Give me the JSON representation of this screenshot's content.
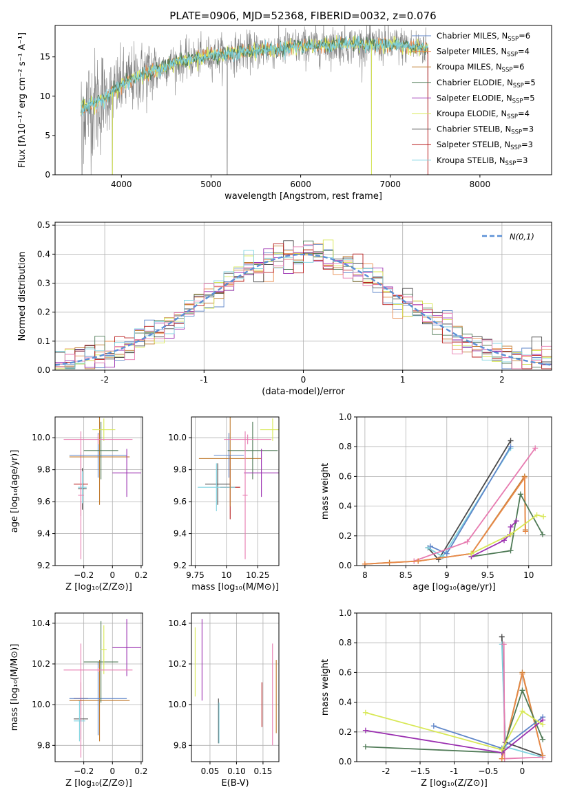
{
  "figure": {
    "title": "PLATE=0906, MJD=52368, FIBERID=0032, z=0.076"
  },
  "colors": {
    "chabrier_miles": "#5f86c9",
    "salpeter_miles": "#e88a4a",
    "kroupa_miles": "#c07a2e",
    "chabrier_elodie": "#4f7a56",
    "salpeter_elodie": "#9a2fb0",
    "kroupa_elodie": "#d8e855",
    "chabrier_stelib": "#4a4a4a",
    "salpeter_stelib": "#b81c1c",
    "kroupa_stelib": "#7fd3e0",
    "pink": "#e77bb0",
    "gauss": "#5a8fd6",
    "data_grey": "#808080"
  },
  "chart_data": [
    {
      "id": "spectrum",
      "type": "line",
      "xlabel": "wavelength [Angstrom, rest frame]",
      "ylabel": "Flux [fλ10⁻¹⁷ erg cm⁻² s⁻¹ A⁻¹]",
      "xlim": [
        3260,
        8800
      ],
      "ylim": [
        0,
        19
      ],
      "xticks": [
        4000,
        5000,
        6000,
        7000,
        8000
      ],
      "yticks": [
        0,
        5,
        10,
        15
      ],
      "legend_position": "top-right",
      "legend": [
        {
          "label": "Chabrier MILES, N",
          "sub": "SSP",
          "val": "=6",
          "color": "chabrier_miles"
        },
        {
          "label": "Salpeter MILES, N",
          "sub": "SSP",
          "val": "=4",
          "color": "salpeter_miles"
        },
        {
          "label": "Kroupa MILES, N",
          "sub": "SSP",
          "val": "=6",
          "color": "kroupa_miles"
        },
        {
          "label": "Chabrier ELODIE, N",
          "sub": "SSP",
          "val": "=5",
          "color": "chabrier_elodie"
        },
        {
          "label": "Salpeter ELODIE, N",
          "sub": "SSP",
          "val": "=5",
          "color": "salpeter_elodie"
        },
        {
          "label": "Kroupa ELODIE, N",
          "sub": "SSP",
          "val": "=4",
          "color": "kroupa_elodie"
        },
        {
          "label": "Chabrier STELIB, N",
          "sub": "SSP",
          "val": "=3",
          "color": "chabrier_stelib"
        },
        {
          "label": "Salpeter STELIB, N",
          "sub": "SSP",
          "val": "=3",
          "color": "salpeter_stelib"
        },
        {
          "label": "Kroupa STELIB, N",
          "sub": "SSP",
          "val": "=3",
          "color": "kroupa_stelib"
        }
      ],
      "continuum": [
        [
          3550,
          8.5
        ],
        [
          3700,
          9.0
        ],
        [
          3900,
          10.5
        ],
        [
          4000,
          11.5
        ],
        [
          4300,
          13.0
        ],
        [
          4600,
          14.3
        ],
        [
          5000,
          15.2
        ],
        [
          5500,
          15.8
        ],
        [
          6000,
          16.3
        ],
        [
          6500,
          16.6
        ],
        [
          7000,
          16.5
        ],
        [
          7400,
          16.2
        ]
      ],
      "drops": [
        3560,
        3900,
        5180,
        6790,
        7420
      ]
    },
    {
      "id": "residuals",
      "type": "histogram",
      "xlabel": "(data-model)/error",
      "ylabel": "Normed distribution",
      "xlim": [
        -2.5,
        2.5
      ],
      "ylim": [
        0,
        0.51
      ],
      "xticks": [
        -2,
        -1,
        0,
        1,
        2
      ],
      "yticks": [
        0.0,
        0.1,
        0.2,
        0.3,
        0.4,
        0.5
      ],
      "legend_position": "top-right",
      "legend_label": "N(0,1)",
      "bin_width": 0.1,
      "series_colors": [
        "chabrier_miles",
        "salpeter_miles",
        "kroupa_miles",
        "chabrier_elodie",
        "salpeter_elodie",
        "kroupa_elodie",
        "chabrier_stelib",
        "salpeter_stelib",
        "kroupa_stelib",
        "pink"
      ]
    },
    {
      "id": "age_vs_Z",
      "type": "errorbar",
      "xlabel": "Z [log₁₀(Z/Z⊙)]",
      "ylabel": "age  [log₁₀(age/yr)]",
      "xlim": [
        -0.4,
        0.21
      ],
      "ylim": [
        9.2,
        10.13
      ],
      "xticks": [
        -0.2,
        0.0,
        0.2
      ],
      "yticks": [
        9.2,
        9.4,
        9.6,
        9.8,
        10.0
      ],
      "points": [
        {
          "x": -0.21,
          "y": 9.68,
          "dx": 0.03,
          "dy": 0.13,
          "color": "chabrier_stelib"
        },
        {
          "x": -0.22,
          "y": 9.71,
          "dx": 0.05,
          "dy": 0.2,
          "color": "salpeter_stelib"
        },
        {
          "x": -0.21,
          "y": 9.69,
          "dx": 0.03,
          "dy": 0.1,
          "color": "kroupa_stelib"
        },
        {
          "x": -0.22,
          "y": 9.64,
          "dx": 0.02,
          "dy": 0.4,
          "color": "pink"
        },
        {
          "x": -0.09,
          "y": 9.88,
          "dx": 0.21,
          "dy": 0.3,
          "color": "kroupa_miles"
        },
        {
          "x": -0.1,
          "y": 9.89,
          "dx": 0.2,
          "dy": 0.14,
          "color": "chabrier_miles"
        },
        {
          "x": -0.08,
          "y": 9.92,
          "dx": 0.12,
          "dy": 0.18,
          "color": "chabrier_elodie"
        },
        {
          "x": -0.06,
          "y": 10.05,
          "dx": 0.08,
          "dy": 0.07,
          "color": "kroupa_elodie"
        },
        {
          "x": 0.1,
          "y": 9.78,
          "dx": 0.1,
          "dy": 0.15,
          "color": "salpeter_elodie"
        },
        {
          "x": -0.1,
          "y": 9.99,
          "dx": 0.24,
          "dy": 0.03,
          "color": "pink"
        }
      ]
    },
    {
      "id": "age_vs_mass",
      "type": "errorbar",
      "xlabel": "mass [log₁₀(M/M⊙)]",
      "ylabel": "",
      "xlim": [
        9.72,
        10.42
      ],
      "ylim": [
        9.2,
        10.13
      ],
      "xticks": [
        9.75,
        10.0,
        10.25
      ],
      "yticks": [
        9.2,
        9.4,
        9.6,
        9.8,
        10.0
      ],
      "points": [
        {
          "x": 9.93,
          "y": 9.71,
          "dx": 0.1,
          "dy": 0.13,
          "color": "chabrier_stelib"
        },
        {
          "x": 10.03,
          "y": 9.69,
          "dx": 0.08,
          "dy": 0.2,
          "color": "salpeter_stelib"
        },
        {
          "x": 9.92,
          "y": 9.69,
          "dx": 0.15,
          "dy": 0.15,
          "color": "kroupa_stelib"
        },
        {
          "x": 10.03,
          "y": 9.87,
          "dx": 0.25,
          "dy": 0.3,
          "color": "kroupa_miles"
        },
        {
          "x": 10.02,
          "y": 9.89,
          "dx": 0.12,
          "dy": 0.14,
          "color": "chabrier_miles"
        },
        {
          "x": 10.21,
          "y": 9.92,
          "dx": 0.2,
          "dy": 0.18,
          "color": "chabrier_elodie"
        },
        {
          "x": 10.28,
          "y": 9.78,
          "dx": 0.14,
          "dy": 0.15,
          "color": "salpeter_elodie"
        },
        {
          "x": 10.37,
          "y": 10.05,
          "dx": 0.1,
          "dy": 0.07,
          "color": "kroupa_elodie"
        },
        {
          "x": 10.17,
          "y": 9.99,
          "dx": 0.19,
          "dy": 0.03,
          "color": "pink"
        },
        {
          "x": 10.15,
          "y": 9.64,
          "dx": 0.02,
          "dy": 0.4,
          "color": "pink"
        }
      ]
    },
    {
      "id": "mass_weight_vs_age",
      "type": "line",
      "xlabel": "age  [log₁₀(age/yr)]",
      "ylabel": "mass weight",
      "xlim": [
        7.9,
        10.28
      ],
      "ylim": [
        0,
        1.0
      ],
      "xticks": [
        8.0,
        8.5,
        9.0,
        9.5,
        10.0
      ],
      "yticks": [
        0.0,
        0.2,
        0.4,
        0.6,
        0.8,
        1.0
      ],
      "series": [
        {
          "color": "chabrier_stelib",
          "x": [
            8.77,
            8.9,
            9.78
          ],
          "y": [
            0.12,
            0.04,
            0.84
          ]
        },
        {
          "color": "kroupa_stelib",
          "x": [
            8.77,
            8.95,
            9.78
          ],
          "y": [
            0.12,
            0.06,
            0.79
          ]
        },
        {
          "color": "chabrier_miles",
          "x": [
            8.8,
            9.0,
            9.78
          ],
          "y": [
            0.13,
            0.08,
            0.8
          ]
        },
        {
          "color": "pink",
          "x": [
            8.6,
            9.25,
            10.08
          ],
          "y": [
            0.03,
            0.16,
            0.79
          ]
        },
        {
          "color": "kroupa_miles",
          "x": [
            8.0,
            8.3,
            8.65,
            9.3,
            9.95,
            9.96
          ],
          "y": [
            0.01,
            0.02,
            0.03,
            0.08,
            0.6,
            0.24
          ]
        },
        {
          "color": "salpeter_miles",
          "x": [
            8.0,
            8.65,
            9.3,
            9.95,
            9.96
          ],
          "y": [
            0.01,
            0.03,
            0.08,
            0.59,
            0.23
          ]
        },
        {
          "color": "chabrier_elodie",
          "x": [
            9.3,
            9.78,
            9.9,
            10.17
          ],
          "y": [
            0.06,
            0.1,
            0.48,
            0.21
          ]
        },
        {
          "color": "salpeter_elodie",
          "x": [
            9.3,
            9.7,
            9.77,
            9.78,
            9.85
          ],
          "y": [
            0.06,
            0.17,
            0.21,
            0.26,
            0.3
          ]
        },
        {
          "color": "kroupa_elodie",
          "x": [
            9.3,
            9.78,
            10.1,
            10.18
          ],
          "y": [
            0.08,
            0.21,
            0.34,
            0.33
          ]
        }
      ]
    },
    {
      "id": "mass_vs_Z",
      "type": "errorbar",
      "xlabel": "Z [log₁₀(Z/Z⊙)]",
      "ylabel": "mass [log₁₀(M/M⊙)]",
      "xlim": [
        -0.4,
        0.21
      ],
      "ylim": [
        9.72,
        10.45
      ],
      "xticks": [
        -0.2,
        0.0,
        0.2
      ],
      "yticks": [
        9.8,
        10.0,
        10.2,
        10.4
      ],
      "points": [
        {
          "x": -0.22,
          "y": 9.93,
          "dx": 0.05,
          "dy": 0.1,
          "color": "chabrier_stelib"
        },
        {
          "x": -0.22,
          "y": 10.03,
          "dx": 0.05,
          "dy": 0.08,
          "color": "salpeter_stelib"
        },
        {
          "x": -0.23,
          "y": 9.92,
          "dx": 0.04,
          "dy": 0.1,
          "color": "kroupa_stelib"
        },
        {
          "x": -0.22,
          "y": 10.02,
          "dx": 0.02,
          "dy": 0.28,
          "color": "pink"
        },
        {
          "x": -0.09,
          "y": 10.02,
          "dx": 0.21,
          "dy": 0.2,
          "color": "kroupa_miles"
        },
        {
          "x": -0.1,
          "y": 10.03,
          "dx": 0.2,
          "dy": 0.18,
          "color": "chabrier_miles"
        },
        {
          "x": -0.08,
          "y": 10.21,
          "dx": 0.12,
          "dy": 0.2,
          "color": "chabrier_elodie"
        },
        {
          "x": -0.06,
          "y": 10.27,
          "dx": 0.02,
          "dy": 0.12,
          "color": "kroupa_elodie"
        },
        {
          "x": 0.1,
          "y": 10.28,
          "dx": 0.1,
          "dy": 0.14,
          "color": "salpeter_elodie"
        },
        {
          "x": -0.1,
          "y": 10.17,
          "dx": 0.24,
          "dy": 0.01,
          "color": "pink"
        }
      ]
    },
    {
      "id": "mass_vs_ebv",
      "type": "errorbar",
      "xlabel": "E(B-V)",
      "ylabel": "",
      "xlim": [
        0.015,
        0.18
      ],
      "ylim": [
        9.72,
        10.45
      ],
      "xticks": [
        0.05,
        0.1,
        0.15
      ],
      "xtick_labels": [
        "0.05",
        "0.10",
        "0.15"
      ],
      "yticks": [
        9.8,
        10.0,
        10.2,
        10.4
      ],
      "points": [
        {
          "x": 0.022,
          "y": 10.21,
          "dx": 0,
          "dy": 0.17,
          "color": "kroupa_elodie"
        },
        {
          "x": 0.035,
          "y": 10.22,
          "dx": 0,
          "dy": 0.2,
          "color": "salpeter_elodie"
        },
        {
          "x": 0.066,
          "y": 9.92,
          "dx": 0,
          "dy": 0.11,
          "color": "chabrier_stelib"
        },
        {
          "x": 0.067,
          "y": 9.91,
          "dx": 0,
          "dy": 0.1,
          "color": "kroupa_stelib"
        },
        {
          "x": 0.148,
          "y": 10.0,
          "dx": 0,
          "dy": 0.11,
          "color": "salpeter_stelib"
        },
        {
          "x": 0.168,
          "y": 10.05,
          "dx": 0,
          "dy": 0.25,
          "color": "pink"
        },
        {
          "x": 0.175,
          "y": 10.04,
          "dx": 0,
          "dy": 0.18,
          "color": "kroupa_miles"
        }
      ]
    },
    {
      "id": "mass_weight_vs_Z",
      "type": "line",
      "xlabel": "Z [log₁₀(Z/Z⊙)]",
      "ylabel": "mass weight",
      "xlim": [
        -2.43,
        0.43
      ],
      "ylim": [
        0,
        1.0
      ],
      "xticks": [
        -2.0,
        -1.5,
        -1.0,
        -0.5,
        0.0
      ],
      "yticks": [
        0.0,
        0.2,
        0.4,
        0.6,
        0.8,
        1.0
      ],
      "series": [
        {
          "color": "chabrier_stelib",
          "x": [
            -0.3,
            -0.25,
            0.3
          ],
          "y": [
            0.84,
            0.13,
            0.04
          ]
        },
        {
          "color": "kroupa_stelib",
          "x": [
            -0.3,
            -0.25,
            0.3
          ],
          "y": [
            0.79,
            0.1,
            0.03
          ]
        },
        {
          "color": "pink",
          "x": [
            -0.27,
            -0.26,
            0.3
          ],
          "y": [
            0.79,
            0.02,
            0.03
          ]
        },
        {
          "color": "kroupa_miles",
          "x": [
            -0.3,
            0.0,
            0.3
          ],
          "y": [
            0.02,
            0.6,
            0.04
          ]
        },
        {
          "color": "salpeter_miles",
          "x": [
            -0.3,
            0.0,
            0.3
          ],
          "y": [
            0.02,
            0.59,
            0.04
          ]
        },
        {
          "color": "chabrier_miles",
          "x": [
            -1.3,
            -0.3,
            0.3
          ],
          "y": [
            0.24,
            0.09,
            0.3
          ]
        },
        {
          "color": "chabrier_elodie",
          "x": [
            -2.3,
            -0.3,
            0.0,
            0.3
          ],
          "y": [
            0.1,
            0.06,
            0.48,
            0.15
          ]
        },
        {
          "color": "salpeter_elodie",
          "x": [
            -2.3,
            -0.3,
            0.3
          ],
          "y": [
            0.21,
            0.06,
            0.28
          ]
        },
        {
          "color": "kroupa_elodie",
          "x": [
            -2.3,
            -0.3,
            0.0,
            0.3
          ],
          "y": [
            0.33,
            0.08,
            0.34,
            0.25
          ]
        }
      ]
    }
  ]
}
